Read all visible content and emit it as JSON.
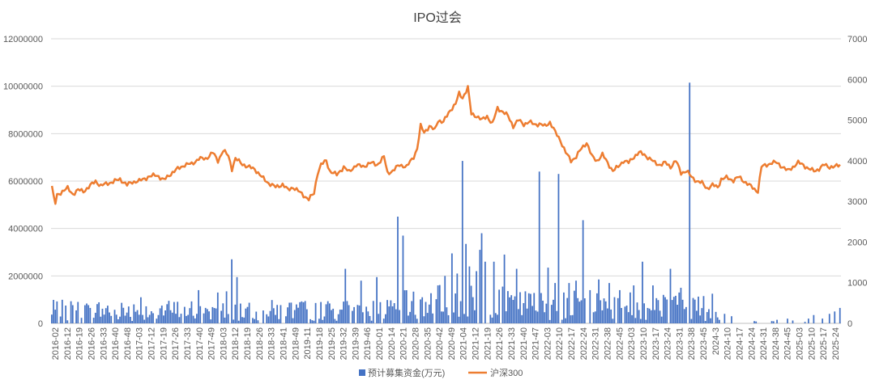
{
  "chart_data": {
    "type": "bar+line",
    "title": "IPO过会",
    "y_left": {
      "ylim": [
        0,
        12000000
      ],
      "ticks": [
        0,
        2000000,
        4000000,
        6000000,
        8000000,
        10000000,
        12000000
      ],
      "tick_labels": [
        "0",
        "2000000",
        "4000000",
        "6000000",
        "8000000",
        "10000000",
        "12000000"
      ]
    },
    "y_right": {
      "ylim": [
        0,
        7000
      ],
      "ticks": [
        0,
        1000,
        2000,
        3000,
        4000,
        5000,
        6000,
        7000
      ],
      "tick_labels": [
        "0",
        "1000",
        "2000",
        "3000",
        "4000",
        "5000",
        "6000",
        "7000"
      ]
    },
    "x_tick_labels": [
      "2016-02",
      "2016-12",
      "2016-19",
      "2016-26",
      "2016-33",
      "2016-40",
      "2016-48",
      "2017-03",
      "2017-12",
      "2017-19",
      "2017-26",
      "2017-33",
      "2017-40",
      "2017-49",
      "2018-03",
      "2018-12",
      "2018-19",
      "2018-26",
      "2018-33",
      "2018-41",
      "2018-49",
      "2019-11",
      "2019-18",
      "2019-25",
      "2019-32",
      "2019-39",
      "2019-46",
      "2020-01",
      "2020-14",
      "2020-21",
      "2020-28",
      "2020-35",
      "2020-42",
      "2020-49",
      "2021-04",
      "2021-12",
      "2021-19",
      "2021-26",
      "2021-33",
      "2021-40",
      "2021-47",
      "2022-03",
      "2022-10",
      "2022-17",
      "2022-24",
      "2022-31",
      "2022-38",
      "2022-45",
      "2023-03",
      "2023-10",
      "2023-17",
      "2023-24",
      "2023-31",
      "2023-38",
      "2023-45",
      "2024-3",
      "2024-10",
      "2024-17",
      "2024-24",
      "2024-31",
      "2024-38",
      "2024-45",
      "2025-03",
      "2025-10",
      "2025-17",
      "2025-24"
    ],
    "series": [
      {
        "name": "预计募集资金(万元)",
        "type": "bar",
        "axis": "left",
        "color": "#4472C4"
      },
      {
        "name": "沪深300",
        "type": "line",
        "axis": "right",
        "color": "#ED7D31",
        "knots": [
          [
            0,
            3380
          ],
          [
            1,
            3100
          ],
          [
            2,
            2950
          ],
          [
            3,
            3150
          ],
          [
            6,
            3250
          ],
          [
            9,
            3320
          ],
          [
            12,
            3180
          ],
          [
            15,
            3280
          ],
          [
            18,
            3250
          ],
          [
            21,
            3350
          ],
          [
            25,
            3500
          ],
          [
            28,
            3380
          ],
          [
            32,
            3450
          ],
          [
            35,
            3480
          ],
          [
            39,
            3550
          ],
          [
            43,
            3400
          ],
          [
            46,
            3480
          ],
          [
            50,
            3500
          ],
          [
            55,
            3600
          ],
          [
            60,
            3650
          ],
          [
            64,
            3520
          ],
          [
            68,
            3680
          ],
          [
            72,
            3800
          ],
          [
            76,
            3900
          ],
          [
            80,
            3920
          ],
          [
            84,
            4050
          ],
          [
            88,
            4050
          ],
          [
            92,
            4200
          ],
          [
            95,
            4000
          ],
          [
            98,
            4250
          ],
          [
            101,
            4120
          ],
          [
            103,
            3800
          ],
          [
            105,
            4050
          ],
          [
            108,
            3950
          ],
          [
            112,
            3850
          ],
          [
            116,
            3800
          ],
          [
            120,
            3600
          ],
          [
            124,
            3450
          ],
          [
            128,
            3350
          ],
          [
            132,
            3420
          ],
          [
            135,
            3280
          ],
          [
            138,
            3350
          ],
          [
            141,
            3250
          ],
          [
            144,
            3150
          ],
          [
            147,
            3050
          ],
          [
            150,
            3200
          ],
          [
            152,
            3700
          ],
          [
            154,
            3900
          ],
          [
            157,
            4000
          ],
          [
            159,
            3750
          ],
          [
            163,
            3650
          ],
          [
            167,
            3850
          ],
          [
            170,
            3720
          ],
          [
            174,
            3900
          ],
          [
            178,
            3850
          ],
          [
            182,
            3950
          ],
          [
            186,
            3900
          ],
          [
            190,
            4100
          ],
          [
            192,
            3700
          ],
          [
            195,
            3750
          ],
          [
            199,
            3900
          ],
          [
            203,
            3850
          ],
          [
            207,
            4100
          ],
          [
            209,
            4300
          ],
          [
            211,
            4850
          ],
          [
            213,
            4700
          ],
          [
            216,
            4850
          ],
          [
            219,
            4750
          ],
          [
            221,
            5000
          ],
          [
            224,
            4950
          ],
          [
            228,
            5250
          ],
          [
            231,
            5400
          ],
          [
            233,
            5650
          ],
          [
            235,
            5550
          ],
          [
            238,
            5800
          ],
          [
            240,
            5150
          ],
          [
            243,
            5100
          ],
          [
            246,
            5000
          ],
          [
            249,
            5100
          ],
          [
            252,
            4900
          ],
          [
            255,
            5300
          ],
          [
            258,
            5200
          ],
          [
            261,
            5100
          ],
          [
            264,
            4850
          ],
          [
            267,
            5000
          ],
          [
            270,
            4900
          ],
          [
            273,
            4950
          ],
          [
            276,
            4900
          ],
          [
            279,
            4900
          ],
          [
            282,
            4850
          ],
          [
            285,
            4950
          ],
          [
            288,
            4700
          ],
          [
            291,
            4500
          ],
          [
            294,
            4200
          ],
          [
            297,
            4000
          ],
          [
            300,
            4100
          ],
          [
            303,
            4300
          ],
          [
            306,
            4450
          ],
          [
            309,
            4100
          ],
          [
            312,
            4000
          ],
          [
            315,
            4150
          ],
          [
            318,
            3950
          ],
          [
            321,
            3750
          ],
          [
            324,
            3850
          ],
          [
            327,
            4000
          ],
          [
            330,
            3950
          ],
          [
            333,
            4100
          ],
          [
            336,
            4200
          ],
          [
            339,
            4150
          ],
          [
            342,
            4050
          ],
          [
            345,
            3950
          ],
          [
            348,
            3900
          ],
          [
            351,
            3950
          ],
          [
            354,
            3850
          ],
          [
            357,
            4000
          ],
          [
            360,
            3700
          ],
          [
            363,
            3750
          ],
          [
            366,
            3600
          ],
          [
            369,
            3500
          ],
          [
            372,
            3450
          ],
          [
            375,
            3320
          ],
          [
            378,
            3400
          ],
          [
            381,
            3350
          ],
          [
            383,
            3550
          ],
          [
            386,
            3580
          ],
          [
            390,
            3520
          ],
          [
            393,
            3600
          ],
          [
            396,
            3500
          ],
          [
            399,
            3400
          ],
          [
            402,
            3300
          ],
          [
            404,
            3250
          ],
          [
            406,
            3850
          ],
          [
            409,
            3900
          ],
          [
            412,
            3950
          ],
          [
            415,
            3950
          ],
          [
            418,
            3850
          ],
          [
            421,
            3750
          ],
          [
            424,
            3850
          ],
          [
            427,
            3950
          ],
          [
            430,
            3900
          ],
          [
            433,
            3800
          ],
          [
            436,
            3750
          ],
          [
            439,
            3800
          ],
          [
            442,
            3900
          ],
          [
            445,
            3850
          ],
          [
            448,
            3850
          ],
          [
            451,
            3900
          ]
        ]
      }
    ],
    "bars": {
      "count": 452,
      "typical_range": [
        100000,
        1000000
      ],
      "tall": [
        [
          8,
          750000
        ],
        [
          22,
          650000
        ],
        [
          51,
          1100000
        ],
        [
          84,
          1400000
        ],
        [
          95,
          1300000
        ],
        [
          100,
          1350000
        ],
        [
          103,
          2700000
        ],
        [
          106,
          1950000
        ],
        [
          154,
          900000
        ],
        [
          168,
          2300000
        ],
        [
          177,
          1800000
        ],
        [
          186,
          1950000
        ],
        [
          198,
          4500000
        ],
        [
          201,
          3700000
        ],
        [
          212,
          1100000
        ],
        [
          221,
          1600000
        ],
        [
          225,
          2000000
        ],
        [
          229,
          2950000
        ],
        [
          232,
          2100000
        ],
        [
          235,
          6850000
        ],
        [
          237,
          3350000
        ],
        [
          239,
          2400000
        ],
        [
          243,
          2200000
        ],
        [
          245,
          3100000
        ],
        [
          246,
          3800000
        ],
        [
          248,
          2600000
        ],
        [
          253,
          2600000
        ],
        [
          259,
          2900000
        ],
        [
          266,
          2300000
        ],
        [
          271,
          1350000
        ],
        [
          279,
          6400000
        ],
        [
          284,
          2350000
        ],
        [
          288,
          1700000
        ],
        [
          290,
          6300000
        ],
        [
          293,
          1300000
        ],
        [
          296,
          1700000
        ],
        [
          300,
          1800000
        ],
        [
          304,
          4350000
        ],
        [
          308,
          1400000
        ],
        [
          313,
          1850000
        ],
        [
          319,
          1700000
        ],
        [
          325,
          1400000
        ],
        [
          333,
          1600000
        ],
        [
          338,
          2600000
        ],
        [
          344,
          1600000
        ],
        [
          350,
          1200000
        ],
        [
          354,
          2300000
        ],
        [
          360,
          1500000
        ],
        [
          365,
          10150000
        ],
        [
          368,
          1000000
        ],
        [
          373,
          1150000
        ],
        [
          378,
          1250000
        ],
        [
          385,
          400000
        ],
        [
          389,
          300000
        ],
        [
          415,
          150000
        ],
        [
          424,
          120000
        ],
        [
          433,
          200000
        ],
        [
          436,
          350000
        ],
        [
          441,
          200000
        ],
        [
          445,
          400000
        ],
        [
          448,
          500000
        ],
        [
          451,
          650000
        ]
      ],
      "sparse_after": 382
    }
  },
  "legend": {
    "bar_label": "预计募集资金(万元)",
    "line_label": "沪深300"
  }
}
